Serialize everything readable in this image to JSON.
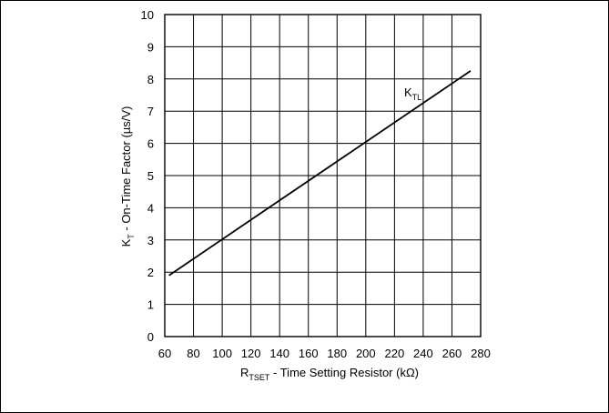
{
  "chart_data": {
    "type": "line",
    "x_ticks": [
      "60",
      "80",
      "100",
      "120",
      "140",
      "160",
      "180",
      "200",
      "220",
      "240",
      "260",
      "280"
    ],
    "y_ticks": [
      "0",
      "1",
      "2",
      "3",
      "4",
      "5",
      "6",
      "7",
      "8",
      "9",
      "10"
    ],
    "xlim": [
      60,
      280
    ],
    "ylim": [
      0,
      10
    ],
    "grid": true,
    "xlabel": {
      "main": "R",
      "sub": "TSET",
      "rest": " - Time Setting Resistor (kΩ)"
    },
    "ylabel": {
      "main": "K",
      "sub": "T",
      "rest": " - On-Time Factor (µs/V)"
    },
    "series": [
      {
        "name": "KTL",
        "label": {
          "main": "K",
          "sub": "TL"
        },
        "color": "#000000",
        "x": [
          63,
          273
        ],
        "y": [
          1.9,
          8.25
        ]
      }
    ]
  }
}
